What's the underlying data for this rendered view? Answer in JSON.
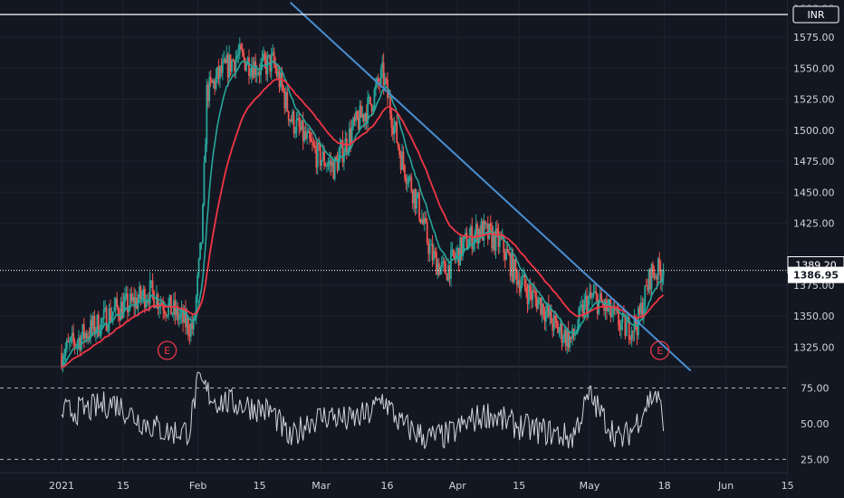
{
  "colors": {
    "background": "#131722",
    "grid": "#1e222d",
    "up": "#26a69a",
    "down": "#ef5350",
    "ema_fast": "#26a69a",
    "ema_slow": "#f23645",
    "trendline": "#4a8fd0",
    "rsi": "#d1d4dc",
    "axis_text": "#d1d4dc"
  },
  "chart_data": {
    "type": "candlestick",
    "symbol_badge": "INR",
    "top_label": "1600.00",
    "price_axis": {
      "range": [
        1310,
        1605
      ],
      "ticks": [
        "1575.00",
        "1550.00",
        "1525.00",
        "1500.00",
        "1475.00",
        "1450.00",
        "1425.00",
        "1375.00",
        "1350.00",
        "1325.00"
      ],
      "tick_values": [
        1575,
        1550,
        1525,
        1500,
        1475,
        1450,
        1425,
        1375,
        1350,
        1325
      ]
    },
    "rsi_axis": {
      "range": [
        17,
        88
      ],
      "ticks": [
        "75.00",
        "50.00",
        "25.00"
      ],
      "tick_values": [
        75,
        50,
        25
      ]
    },
    "time_axis": {
      "labels": [
        "2021",
        "15",
        "Feb",
        "15",
        "Mar",
        "16",
        "Apr",
        "15",
        "May",
        "18",
        "Jun",
        "15"
      ],
      "positions_days": [
        0,
        14,
        31,
        45,
        59,
        74,
        90,
        104,
        120,
        137,
        151,
        165
      ]
    },
    "last_price": {
      "label": "1386.95",
      "value": 1386.95
    },
    "high_line": {
      "label": "1389.20",
      "value": 1389.2
    },
    "reference_level": 1603,
    "trendline": [
      {
        "day": 52,
        "price": 1603
      },
      {
        "day": 143,
        "price": 1306
      }
    ],
    "earnings_markers": [
      {
        "label": "E",
        "day": 24
      },
      {
        "label": "E",
        "day": 136
      }
    ],
    "price_path": [
      [
        0,
        1320
      ],
      [
        5,
        1335
      ],
      [
        9,
        1345
      ],
      [
        12,
        1355
      ],
      [
        16,
        1360
      ],
      [
        20,
        1370
      ],
      [
        25,
        1355
      ],
      [
        28,
        1345
      ],
      [
        30,
        1340
      ],
      [
        32,
        1420
      ],
      [
        33,
        1530
      ],
      [
        36,
        1545
      ],
      [
        40,
        1560
      ],
      [
        45,
        1550
      ],
      [
        48,
        1555
      ],
      [
        50,
        1535
      ],
      [
        52,
        1510
      ],
      [
        55,
        1495
      ],
      [
        58,
        1480
      ],
      [
        62,
        1470
      ],
      [
        66,
        1500
      ],
      [
        70,
        1520
      ],
      [
        73,
        1545
      ],
      [
        77,
        1480
      ],
      [
        81,
        1440
      ],
      [
        84,
        1400
      ],
      [
        87,
        1385
      ],
      [
        92,
        1410
      ],
      [
        95,
        1420
      ],
      [
        100,
        1408
      ],
      [
        103,
        1385
      ],
      [
        106,
        1370
      ],
      [
        109,
        1360
      ],
      [
        112,
        1342
      ],
      [
        116,
        1330
      ],
      [
        119,
        1360
      ],
      [
        121,
        1365
      ],
      [
        124,
        1355
      ],
      [
        128,
        1340
      ],
      [
        131,
        1345
      ],
      [
        134,
        1385
      ],
      [
        137,
        1386.95
      ]
    ],
    "rsi_path": [
      [
        0,
        58
      ],
      [
        6,
        60
      ],
      [
        12,
        65
      ],
      [
        18,
        52
      ],
      [
        24,
        44
      ],
      [
        29,
        45
      ],
      [
        31,
        80
      ],
      [
        35,
        66
      ],
      [
        42,
        63
      ],
      [
        48,
        58
      ],
      [
        52,
        38
      ],
      [
        56,
        52
      ],
      [
        61,
        56
      ],
      [
        65,
        52
      ],
      [
        70,
        57
      ],
      [
        73,
        68
      ],
      [
        77,
        50
      ],
      [
        83,
        40
      ],
      [
        88,
        42
      ],
      [
        93,
        52
      ],
      [
        97,
        57
      ],
      [
        102,
        50
      ],
      [
        107,
        46
      ],
      [
        111,
        44
      ],
      [
        116,
        40
      ],
      [
        120,
        70
      ],
      [
        123,
        55
      ],
      [
        127,
        38
      ],
      [
        130,
        47
      ],
      [
        133,
        64
      ],
      [
        135,
        72
      ],
      [
        137,
        52
      ]
    ]
  }
}
